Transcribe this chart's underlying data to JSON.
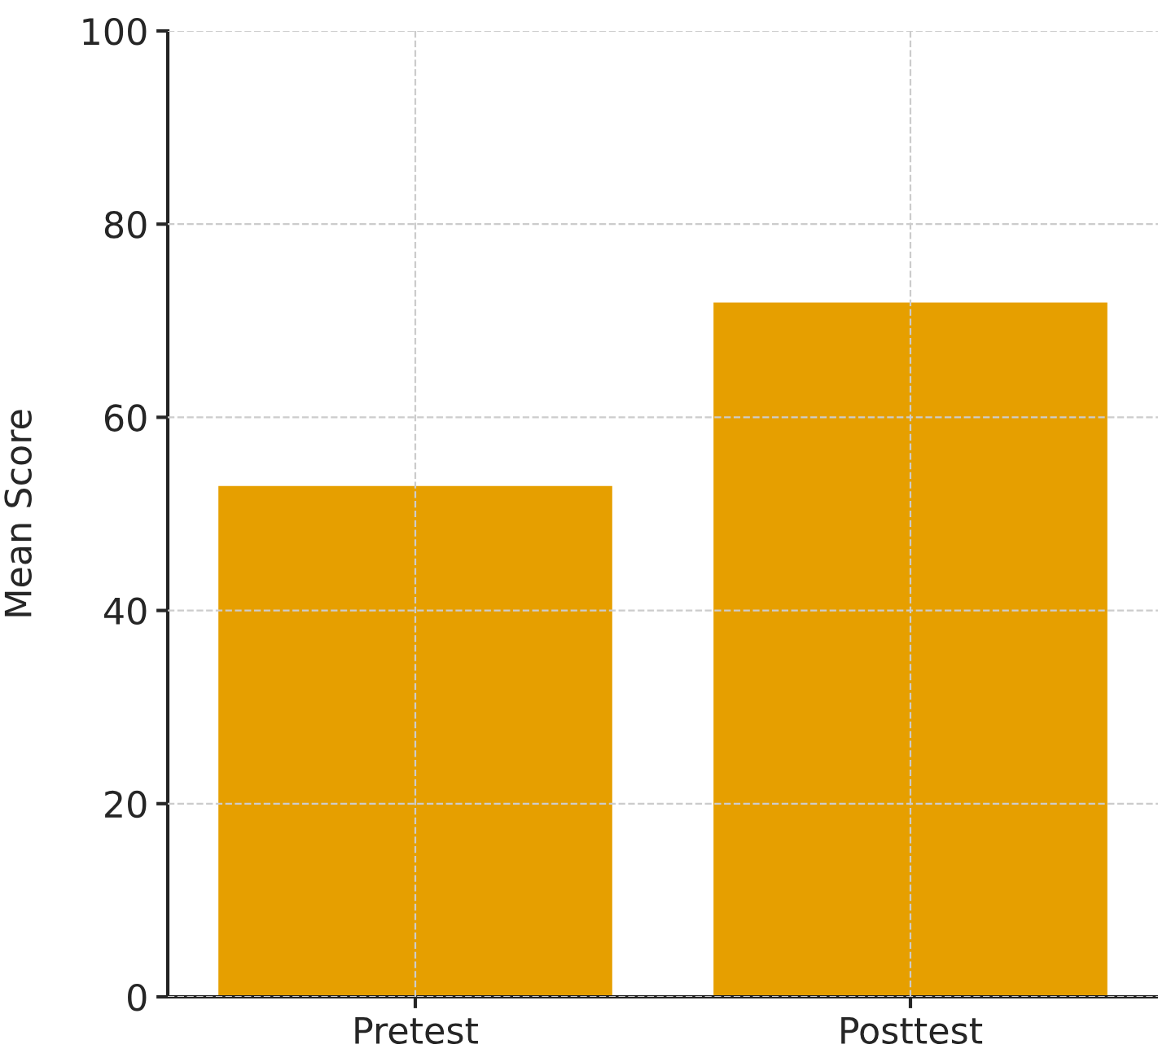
{
  "chart_data": {
    "type": "bar",
    "ylabel": "Mean Score",
    "categories": [
      "Pretest",
      "Posttest"
    ],
    "series": [
      {
        "color": "#e69f00",
        "values": [
          53,
          72
        ]
      }
    ],
    "ylim": [
      0,
      100
    ],
    "yticks": [
      0,
      20,
      40,
      60,
      80,
      100
    ],
    "grid": true,
    "line_style": "dashed"
  }
}
